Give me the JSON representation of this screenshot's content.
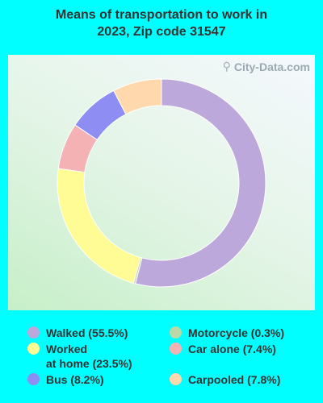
{
  "title_lines": [
    "Means of transportation to work in",
    "2023, Zip code 31547"
  ],
  "watermark": "City-Data.com",
  "chart_data": {
    "type": "pie",
    "title": "Means of transportation to work in 2023, Zip code 31547",
    "donut": true,
    "slices": [
      {
        "label": "Walked",
        "value": 55.5,
        "legend_lines": [
          "Walked (55.5%)"
        ],
        "color": "#bca8da"
      },
      {
        "label": "Motorcycle",
        "value": 0.3,
        "legend_lines": [
          "Motorcycle (0.3%)"
        ],
        "color": "#b9d9a8"
      },
      {
        "label": "Worked at home",
        "value": 23.5,
        "legend_lines": [
          "Worked",
          "at home (23.5%)"
        ],
        "color": "#fffb95"
      },
      {
        "label": "Car alone",
        "value": 7.4,
        "legend_lines": [
          "Car alone (7.4%)"
        ],
        "color": "#f4b2b5"
      },
      {
        "label": "Bus",
        "value": 8.2,
        "legend_lines": [
          "Bus (8.2%)"
        ],
        "color": "#8d8df3"
      },
      {
        "label": "Carpooled",
        "value": 7.8,
        "legend_lines": [
          "Carpooled (7.8%)"
        ],
        "color": "#ffd8ad"
      }
    ]
  }
}
